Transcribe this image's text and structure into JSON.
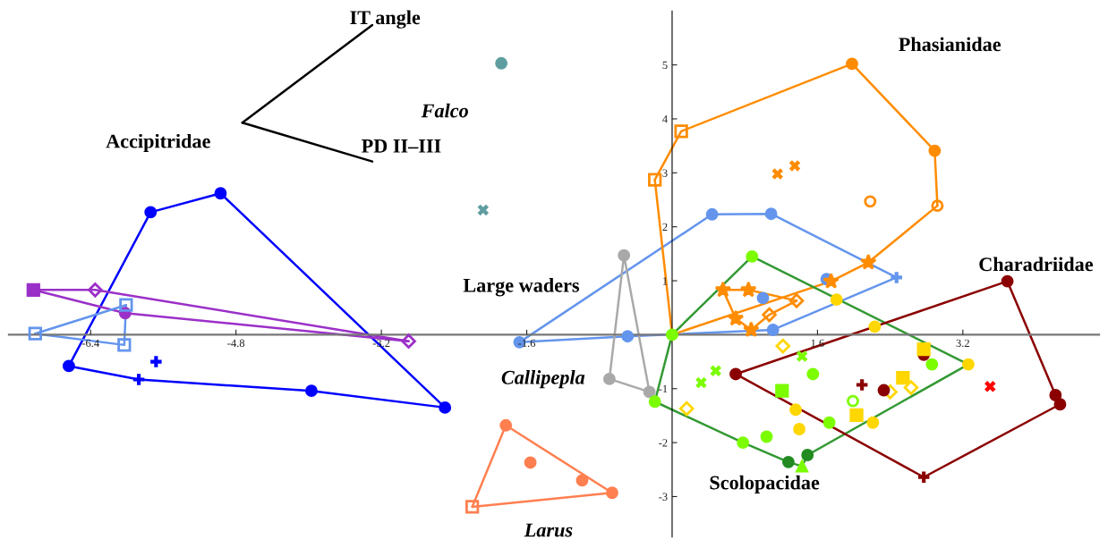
{
  "chart_data": {
    "type": "scatter",
    "xlim": [
      -7.3,
      4.7
    ],
    "ylim": [
      -3.75,
      6.0
    ],
    "xticks": [
      -6.4,
      -4.8,
      -3.2,
      -1.6,
      1.6,
      3.2
    ],
    "yticks": [
      -3,
      -2,
      -1,
      1,
      2,
      3,
      4,
      5
    ],
    "grid": false,
    "legend": false,
    "series": [
      {
        "type": "line",
        "color": "#000000",
        "marker": "none",
        "x": [
          -4.73,
          -3.3
        ],
        "values": [
          3.93,
          5.74
        ]
      },
      {
        "type": "line",
        "color": "#000000",
        "marker": "none",
        "x": [
          -4.73,
          -3.3
        ],
        "values": [
          3.93,
          3.21
        ]
      },
      {
        "type": "line",
        "color": "#0000ff",
        "marker": "none",
        "x": [
          -6.64,
          -5.74,
          -4.97,
          -2.5
        ],
        "values": [
          -0.58,
          2.27,
          2.62,
          -1.35
        ]
      },
      {
        "type": "line",
        "color": "#0000ff",
        "marker": "none",
        "x": [
          -6.64,
          -5.87,
          -3.97,
          -2.5
        ],
        "values": [
          -0.58,
          -0.83,
          -1.04,
          -1.35
        ]
      },
      {
        "color": "#0000ff",
        "marker": "circle",
        "x": [
          -5.74,
          -4.97,
          -6.64,
          -2.5,
          -3.97
        ],
        "values": [
          2.27,
          2.62,
          -0.58,
          -1.35,
          -1.04
        ]
      },
      {
        "color": "#0000ff",
        "marker": "plus",
        "x": [
          -5.87,
          -5.68
        ],
        "values": [
          -0.83,
          -0.5
        ]
      },
      {
        "type": "line",
        "color": "#9b30c8",
        "marker": "none",
        "x": [
          -7.03,
          -6.35,
          -2.9
        ],
        "values": [
          0.83,
          0.83,
          -0.12
        ]
      },
      {
        "type": "line",
        "color": "#9b30c8",
        "marker": "none",
        "x": [
          -7.03,
          -6.02,
          -2.9
        ],
        "values": [
          0.83,
          0.4,
          -0.12
        ]
      },
      {
        "color": "#9b30c8",
        "marker": "square",
        "x": [
          -7.03
        ],
        "values": [
          0.83
        ]
      },
      {
        "color": "#9b30c8",
        "marker": "diamond-open",
        "x": [
          -6.35,
          -2.9
        ],
        "values": [
          0.83,
          -0.12
        ]
      },
      {
        "color": "#9b30c8",
        "marker": "circle",
        "x": [
          -6.02
        ],
        "values": [
          0.4
        ]
      },
      {
        "type": "line",
        "color": "#6495ed",
        "marker": "none",
        "x": [
          -7.01,
          -6.01
        ],
        "values": [
          0.02,
          0.55
        ]
      },
      {
        "type": "line",
        "color": "#6495ed",
        "marker": "none",
        "x": [
          -7.01,
          -6.03,
          -6.01
        ],
        "values": [
          0.02,
          -0.19,
          0.55
        ]
      },
      {
        "color": "#6495ed",
        "marker": "square-open",
        "x": [
          -7.01,
          -6.01,
          -6.03
        ],
        "values": [
          0.02,
          0.55,
          -0.19
        ]
      },
      {
        "type": "line",
        "color": "#6495ed",
        "marker": "none",
        "x": [
          -1.68,
          0.44,
          1.09,
          2.47
        ],
        "values": [
          -0.14,
          2.23,
          2.24,
          1.06
        ]
      },
      {
        "type": "line",
        "color": "#6495ed",
        "marker": "none",
        "x": [
          -1.68,
          -0.49,
          1.11,
          2.47
        ],
        "values": [
          -0.14,
          -0.03,
          0.09,
          1.06
        ]
      },
      {
        "color": "#6495ed",
        "marker": "circle",
        "x": [
          -1.68,
          -0.49,
          0.44,
          1.09,
          1.11,
          1.0,
          1.7
        ],
        "values": [
          -0.14,
          -0.03,
          2.23,
          2.24,
          0.09,
          0.68,
          1.03
        ]
      },
      {
        "color": "#6495ed",
        "marker": "plus",
        "x": [
          2.47
        ],
        "values": [
          1.06
        ]
      },
      {
        "color": "#5f9ea0",
        "marker": "circle",
        "x": [
          -1.88
        ],
        "values": [
          5.03
        ]
      },
      {
        "color": "#5f9ea0",
        "marker": "cross",
        "x": [
          -2.08
        ],
        "values": [
          2.31
        ]
      },
      {
        "type": "line",
        "color": "#a9a9a9",
        "marker": "none",
        "x": [
          -0.69,
          -0.53,
          -0.25
        ],
        "values": [
          -0.82,
          1.47,
          -1.06
        ]
      },
      {
        "type": "line",
        "color": "#a9a9a9",
        "marker": "none",
        "x": [
          -0.69,
          -0.25
        ],
        "values": [
          -0.82,
          -1.06
        ]
      },
      {
        "color": "#a9a9a9",
        "marker": "circle",
        "x": [
          -0.53,
          -0.69,
          -0.25
        ],
        "values": [
          1.47,
          -0.82,
          -1.06
        ]
      },
      {
        "type": "line",
        "color": "#ff7f50",
        "marker": "none",
        "x": [
          -2.2,
          -1.83,
          -0.66
        ],
        "values": [
          -3.19,
          -1.68,
          -2.93
        ]
      },
      {
        "type": "line",
        "color": "#ff7f50",
        "marker": "none",
        "x": [
          -2.2,
          -0.66
        ],
        "values": [
          -3.19,
          -2.93
        ]
      },
      {
        "color": "#ff7f50",
        "marker": "circle",
        "x": [
          -1.83,
          -1.56,
          -0.99,
          -0.66
        ],
        "values": [
          -1.68,
          -2.37,
          -2.7,
          -2.93
        ]
      },
      {
        "color": "#ff7f50",
        "marker": "square-open",
        "x": [
          -2.2
        ],
        "values": [
          -3.19
        ]
      },
      {
        "type": "line",
        "color": "#ff8c00",
        "marker": "none",
        "x": [
          -0.19,
          0.1,
          1.98,
          2.89,
          2.92
        ],
        "values": [
          2.87,
          3.77,
          5.02,
          3.41,
          2.39
        ]
      },
      {
        "type": "line",
        "color": "#ff8c00",
        "marker": "none",
        "x": [
          -0.19,
          0.0,
          1.75,
          2.16,
          2.92
        ],
        "values": [
          2.87,
          0.0,
          0.99,
          1.34,
          2.39
        ]
      },
      {
        "color": "#ff8c00",
        "marker": "square-open",
        "x": [
          0.1,
          -0.19
        ],
        "values": [
          3.77,
          2.87
        ]
      },
      {
        "color": "#ff8c00",
        "marker": "circle",
        "x": [
          1.98,
          2.89
        ],
        "values": [
          5.02,
          3.41
        ]
      },
      {
        "color": "#ff8c00",
        "marker": "circle-open",
        "x": [
          2.92,
          2.18
        ],
        "values": [
          2.39,
          2.47
        ]
      },
      {
        "color": "#ff8c00",
        "marker": "cross",
        "x": [
          1.16,
          1.35
        ],
        "values": [
          2.98,
          3.13
        ]
      },
      {
        "color": "#ff8c00",
        "marker": "star",
        "x": [
          2.16,
          1.75
        ],
        "values": [
          1.34,
          0.99
        ]
      },
      {
        "type": "line",
        "color": "#ff8c00",
        "marker": "none",
        "x": [
          0.56,
          0.84,
          1.37
        ],
        "values": [
          0.83,
          0.83,
          0.63
        ]
      },
      {
        "type": "line",
        "color": "#ff8c00",
        "marker": "none",
        "x": [
          0.56,
          0.7,
          0.87,
          1.07,
          1.37
        ],
        "values": [
          0.83,
          0.3,
          0.09,
          0.37,
          0.63
        ]
      },
      {
        "color": "#ff8c00",
        "marker": "star",
        "x": [
          0.56,
          0.84,
          0.7,
          0.87
        ],
        "values": [
          0.83,
          0.83,
          0.3,
          0.09
        ]
      },
      {
        "color": "#ff8c00",
        "marker": "diamond-open",
        "x": [
          1.37,
          1.07
        ],
        "values": [
          0.63,
          0.37
        ]
      },
      {
        "type": "line",
        "color": "#339933",
        "marker": "none",
        "x": [
          -0.19,
          0.0,
          0.88,
          3.26
        ],
        "values": [
          -1.24,
          0.0,
          1.45,
          -0.55
        ]
      },
      {
        "type": "line",
        "color": "#339933",
        "marker": "none",
        "x": [
          -0.19,
          0.78,
          1.28,
          1.43,
          1.49,
          3.26
        ],
        "values": [
          -1.24,
          -2.0,
          -2.36,
          -2.44,
          -2.23,
          -0.55
        ]
      },
      {
        "color": "#228b22",
        "marker": "circle",
        "x": [
          1.49,
          1.28
        ],
        "values": [
          -2.23,
          -2.36
        ]
      },
      {
        "color": "#7cfc00",
        "marker": "circle",
        "x": [
          0.0,
          0.88,
          0.78,
          -0.19,
          1.55,
          1.04,
          1.73,
          2.86
        ],
        "values": [
          0.0,
          1.45,
          -2.0,
          -1.24,
          -0.73,
          -1.89,
          -1.63,
          -0.55
        ]
      },
      {
        "color": "#7cfc00",
        "marker": "triangle",
        "x": [
          1.43
        ],
        "values": [
          -2.44
        ]
      },
      {
        "color": "#7cfc00",
        "marker": "circle-open",
        "x": [
          1.99
        ],
        "values": [
          -1.23
        ]
      },
      {
        "color": "#7cfc00",
        "marker": "cross",
        "x": [
          1.43,
          0.48,
          0.32
        ],
        "values": [
          -0.4,
          -0.67,
          -0.89
        ]
      },
      {
        "color": "#7cfc00",
        "marker": "square",
        "x": [
          1.21
        ],
        "values": [
          -1.04
        ]
      },
      {
        "color": "#ffd700",
        "marker": "circle",
        "x": [
          3.26,
          1.81,
          2.23,
          1.36,
          1.4,
          2.21
        ],
        "values": [
          -0.55,
          0.65,
          0.15,
          -1.39,
          -1.75,
          -1.63
        ]
      },
      {
        "color": "#ffd700",
        "marker": "diamond-open",
        "x": [
          1.22,
          0.16,
          2.4,
          2.63
        ],
        "values": [
          -0.21,
          -1.37,
          -1.06,
          -0.98
        ]
      },
      {
        "type": "line",
        "color": "#8b0000",
        "marker": "none",
        "x": [
          0.7,
          3.69,
          4.22,
          4.27
        ],
        "values": [
          -0.73,
          0.99,
          -1.12,
          -1.29
        ]
      },
      {
        "type": "line",
        "color": "#8b0000",
        "marker": "none",
        "x": [
          0.7,
          2.77,
          4.27
        ],
        "values": [
          -0.73,
          -2.64,
          -1.29
        ]
      },
      {
        "color": "#8b0000",
        "marker": "circle",
        "x": [
          0.7,
          3.69,
          4.22,
          4.27,
          2.33,
          2.77
        ],
        "values": [
          -0.73,
          0.99,
          -1.12,
          -1.29,
          -1.03,
          -0.37
        ]
      },
      {
        "color": "#8b0000",
        "marker": "plus",
        "x": [
          2.77,
          2.09
        ],
        "values": [
          -2.64,
          -0.93
        ]
      },
      {
        "color": "#ffd700",
        "marker": "square",
        "x": [
          2.77,
          2.54,
          2.03
        ],
        "values": [
          -0.27,
          -0.8,
          -1.49
        ]
      },
      {
        "color": "#ff0000",
        "marker": "cross",
        "x": [
          3.5
        ],
        "values": [
          -0.96
        ]
      }
    ],
    "annotations": [
      "IT angle",
      "PD II–III",
      "Accipitridae",
      "Falco",
      "Phasianidae",
      "Large waders",
      "Callipepla",
      "Larus",
      "Charadriidae",
      "Scolopacidae"
    ]
  }
}
